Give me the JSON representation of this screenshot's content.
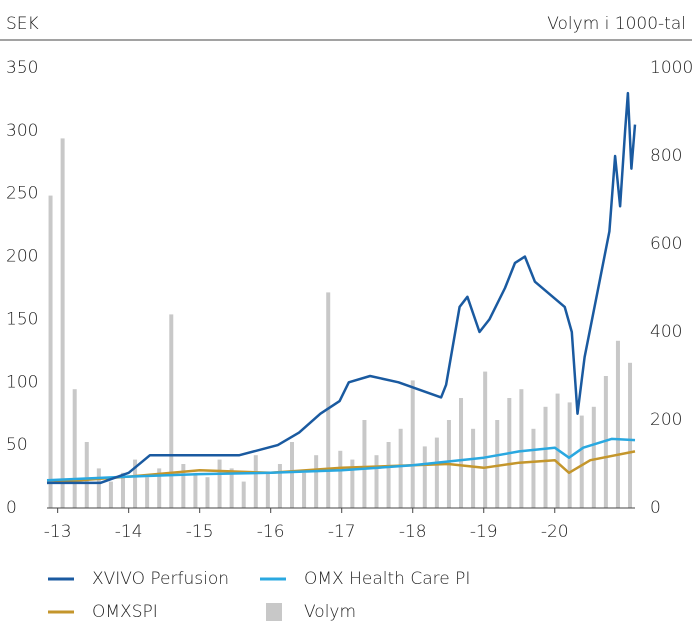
{
  "chart_data": {
    "type": "line",
    "y_label": "SEK",
    "y2_label": "Volym i 1000-tal",
    "xlim": [
      2012.85,
      2021.13
    ],
    "xticks": [
      {
        "value": 2013,
        "label": "-13"
      },
      {
        "value": 2014,
        "label": "-14"
      },
      {
        "value": 2015,
        "label": "-15"
      },
      {
        "value": 2016,
        "label": "-16"
      },
      {
        "value": 2017,
        "label": "-17"
      },
      {
        "value": 2018,
        "label": "-18"
      },
      {
        "value": 2019,
        "label": "-19"
      },
      {
        "value": 2020,
        "label": "-20"
      }
    ],
    "ylim": [
      0,
      350
    ],
    "yticks": [
      0,
      50,
      100,
      150,
      200,
      250,
      300,
      350
    ],
    "y2lim": [
      0,
      1000
    ],
    "y2ticks": [
      0,
      200,
      400,
      600,
      800,
      1000
    ],
    "grid": false,
    "legend": "bottom",
    "series": [
      {
        "name": "Volym",
        "type": "bar",
        "axis": "y2",
        "color": "#c8c8c8",
        "x": [
          2012.9,
          2013.07,
          2013.24,
          2013.41,
          2013.58,
          2013.75,
          2013.92,
          2014.09,
          2014.26,
          2014.43,
          2014.6,
          2014.77,
          2014.94,
          2015.11,
          2015.28,
          2015.45,
          2015.62,
          2015.79,
          2015.96,
          2016.13,
          2016.3,
          2016.47,
          2016.64,
          2016.81,
          2016.98,
          2017.15,
          2017.32,
          2017.49,
          2017.66,
          2017.83,
          2018.0,
          2018.17,
          2018.34,
          2018.51,
          2018.68,
          2018.85,
          2019.02,
          2019.19,
          2019.36,
          2019.53,
          2019.7,
          2019.87,
          2020.04,
          2020.21,
          2020.38,
          2020.55,
          2020.72,
          2020.89,
          2021.06
        ],
        "values": [
          710,
          840,
          270,
          150,
          90,
          60,
          80,
          110,
          70,
          90,
          440,
          100,
          80,
          70,
          110,
          90,
          60,
          120,
          80,
          100,
          150,
          80,
          120,
          490,
          130,
          110,
          200,
          120,
          150,
          180,
          290,
          140,
          160,
          200,
          250,
          180,
          310,
          200,
          250,
          270,
          180,
          230,
          260,
          240,
          210,
          230,
          300,
          380,
          330
        ]
      },
      {
        "name": "OMXSPI",
        "color": "#c4962c",
        "x": [
          2012.85,
          2014,
          2015,
          2016,
          2017,
          2018,
          2018.5,
          2019,
          2019.5,
          2020,
          2020.2,
          2020.5,
          2021.13
        ],
        "values": [
          20,
          25,
          30,
          28,
          32,
          34,
          35,
          32,
          36,
          38,
          28,
          38,
          45
        ]
      },
      {
        "name": "OMX Health Care PI",
        "color": "#2aa8e0",
        "x": [
          2012.85,
          2014,
          2015,
          2016,
          2017,
          2018,
          2019,
          2019.5,
          2020,
          2020.2,
          2020.4,
          2020.8,
          2021.13
        ],
        "values": [
          22,
          25,
          27,
          28,
          30,
          34,
          40,
          45,
          48,
          40,
          48,
          55,
          54
        ]
      },
      {
        "name": "XVIVO Perfusion",
        "color": "#1a5aa0",
        "x": [
          2012.85,
          2013.6,
          2014.0,
          2014.3,
          2015.0,
          2015.56,
          2016.1,
          2016.4,
          2016.7,
          2016.97,
          2017.1,
          2017.4,
          2017.8,
          2018.4,
          2018.47,
          2018.66,
          2018.77,
          2018.94,
          2019.08,
          2019.3,
          2019.44,
          2019.58,
          2019.72,
          2019.93,
          2020.14,
          2020.24,
          2020.32,
          2020.42,
          2020.63,
          2020.77,
          2020.85,
          2020.92,
          2020.99,
          2021.03,
          2021.08,
          2021.13
        ],
        "values": [
          20,
          20,
          28,
          42,
          42,
          42,
          50,
          60,
          75,
          85,
          100,
          105,
          100,
          88,
          98,
          160,
          168,
          140,
          150,
          175,
          195,
          200,
          180,
          170,
          160,
          140,
          75,
          120,
          180,
          220,
          280,
          240,
          300,
          330,
          270,
          305
        ]
      }
    ]
  }
}
